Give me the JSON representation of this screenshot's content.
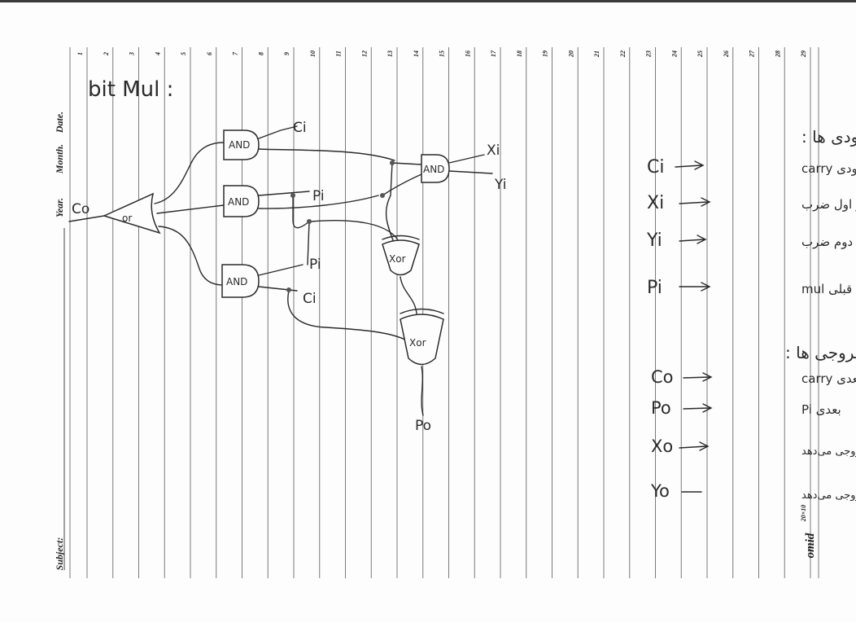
{
  "page": {
    "title": "bit Mul :",
    "header_fields": [
      "Date.",
      "Month.",
      "Year."
    ],
    "subject_label": "Subject:",
    "brand": "omid",
    "brand_sub": "20×10",
    "line_numbers": [
      "1",
      "2",
      "3",
      "4",
      "5",
      "6",
      "7",
      "8",
      "9",
      "10",
      "11",
      "12",
      "13",
      "14",
      "15",
      "16",
      "17",
      "18",
      "19",
      "20",
      "21",
      "22",
      "23",
      "24",
      "25",
      "26",
      "27",
      "28",
      "29"
    ]
  },
  "circuit": {
    "gates": {
      "and1": "AND",
      "and2": "AND",
      "and3": "AND",
      "and4": "AND",
      "or1": "or",
      "xor1": "Xor",
      "xor2": "Xor"
    },
    "labels": {
      "co": "Co",
      "ci_top": "Ci",
      "pi_mid": "Pi",
      "xi": "Xi",
      "yi": "Yi",
      "pi_low": "Pi",
      "ci_low": "Ci",
      "po": "Po"
    }
  },
  "notes": {
    "inputs_heading": "ورودی ها :",
    "inputs": [
      {
        "sym": "Ci",
        "desc": "ورودی carry"
      },
      {
        "sym": "Xi",
        "desc": "عنصر اول ضرب"
      },
      {
        "sym": "Yi",
        "desc": "عنصر دوم ضرب"
      },
      {
        "sym": "Pi",
        "desc": "از bit قبلی mul"
      }
    ],
    "outputs_heading": "خروجی ها :",
    "outputs": [
      {
        "sym": "Co",
        "desc": "بعدی carry"
      },
      {
        "sym": "Po",
        "desc": "بعدی Pi"
      },
      {
        "sym": "Xo",
        "desc": "خود Xi را خروجی می‌دهد"
      },
      {
        "sym": "Yo",
        "desc": "خود Yi را خروجی می‌دهد"
      }
    ]
  }
}
